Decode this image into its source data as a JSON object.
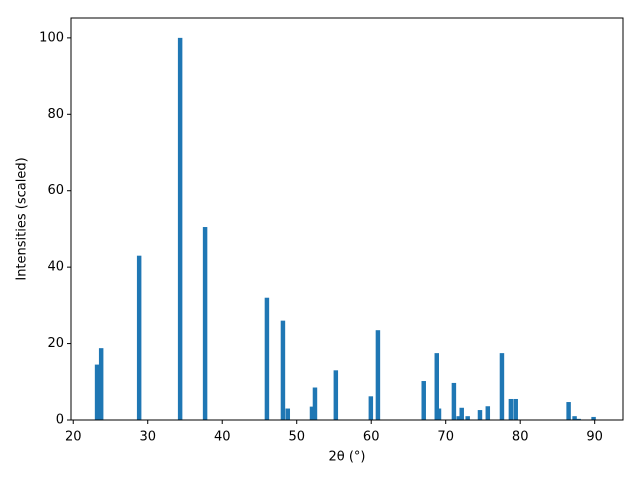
{
  "chart_data": {
    "type": "bar",
    "xlabel": "2θ (°)",
    "ylabel": "Intensities (scaled)",
    "x": [
      23.2,
      23.75,
      28.85,
      34.35,
      37.7,
      46.0,
      48.15,
      48.8,
      52.05,
      52.45,
      55.25,
      59.95,
      60.9,
      67.05,
      68.8,
      69.1,
      71.1,
      71.75,
      72.15,
      72.95,
      74.6,
      75.65,
      77.55,
      78.75,
      79.4,
      86.5,
      87.3,
      87.85,
      89.85
    ],
    "values": [
      14.5,
      18.8,
      43,
      100,
      50.5,
      32,
      26,
      3,
      3.5,
      8.5,
      13,
      6.2,
      23.5,
      10.2,
      17.5,
      3,
      9.7,
      1,
      3.2,
      1,
      2.6,
      3.6,
      17.5,
      5.5,
      5.5,
      4.7,
      1,
      0.3,
      0.8
    ],
    "color": "#1f77b4",
    "xlim": [
      19.7,
      93.8
    ],
    "ylim": [
      0,
      105.2
    ],
    "xticks": [
      20,
      30,
      40,
      50,
      60,
      70,
      80,
      90
    ],
    "yticks": [
      0,
      20,
      40,
      60,
      80,
      100
    ]
  }
}
